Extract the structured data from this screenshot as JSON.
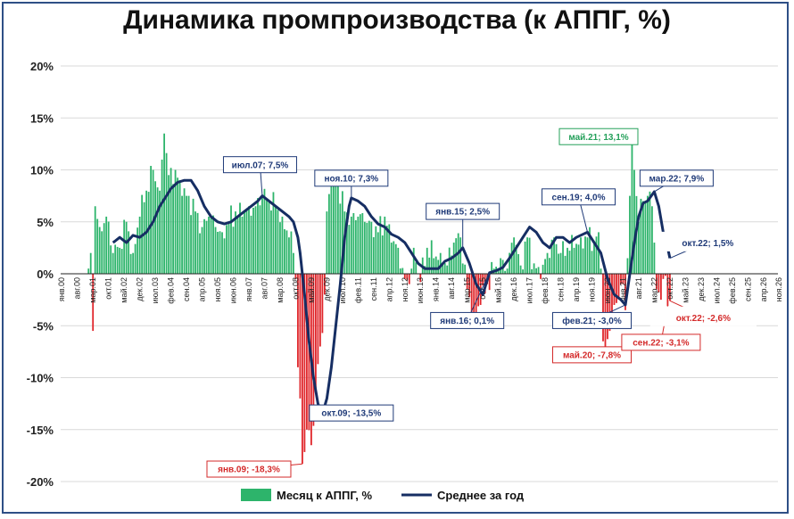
{
  "colors": {
    "positive_bar": "#2db46b",
    "negative_bar": "#e0262b",
    "avg_line": "#162e63",
    "grid": "#d9d9d9",
    "pos_annotation": "#24a05a",
    "neg_annotation": "#d42a2a",
    "avg_annotation": "#1f3a78"
  },
  "chart_data": {
    "type": "bar",
    "title": "Динамика промпроизводства (к АППГ, %)",
    "ylim": [
      -20,
      20
    ],
    "y_ticks": [
      "20%",
      "15%",
      "10%",
      "5%",
      "0%",
      "-5%",
      "-10%",
      "-15%",
      "-20%"
    ],
    "grid": true,
    "x_range": [
      "янв.00",
      "ноя.26"
    ],
    "x_tick_labels": [
      "янв.00",
      "авг.00",
      "мар.01",
      "окт.01",
      "май.02",
      "дек.02",
      "июл.03",
      "фев.04",
      "сен.04",
      "апр.05",
      "ноя.05",
      "июн.06",
      "янв.07",
      "авг.07",
      "мар.08",
      "окт.08",
      "май.09",
      "дек.09",
      "июл.10",
      "фев.11",
      "сен.11",
      "апр.12",
      "ноя.12",
      "июн.13",
      "янв.14",
      "авг.14",
      "мар.15",
      "окт.15",
      "май.16",
      "дек.16",
      "июл.17",
      "фев.18",
      "сен.18",
      "апр.19",
      "ноя.19",
      "июн.20",
      "янв.21",
      "авг.21",
      "мар.22",
      "окт.22",
      "май.23",
      "дек.23",
      "июл.24",
      "фев.25",
      "сен.25",
      "апр.26",
      "ноя.26"
    ],
    "series": [
      {
        "name": "Месяц к АППГ, %",
        "kind": "bar",
        "anchors": [
          [
            "2001-01",
            0.5
          ],
          [
            "2001-02",
            2.0
          ],
          [
            "2001-03",
            -5.5
          ],
          [
            "2001-04",
            6.5
          ],
          [
            "2001-06",
            4.5
          ],
          [
            "2001-09",
            5.5
          ],
          [
            "2001-12",
            2.0
          ],
          [
            "2002-03",
            2.5
          ],
          [
            "2002-06",
            5.0
          ],
          [
            "2002-09",
            2.0
          ],
          [
            "2002-12",
            5.5
          ],
          [
            "2003-03",
            8.0
          ],
          [
            "2003-06",
            10.0
          ],
          [
            "2003-09",
            8.0
          ],
          [
            "2003-11",
            13.5
          ],
          [
            "2004-01",
            9.5
          ],
          [
            "2004-04",
            10.0
          ],
          [
            "2004-07",
            7.5
          ],
          [
            "2004-10",
            7.5
          ],
          [
            "2005-01",
            6.0
          ],
          [
            "2005-04",
            4.5
          ],
          [
            "2005-07",
            5.5
          ],
          [
            "2005-10",
            4.5
          ],
          [
            "2006-01",
            4.0
          ],
          [
            "2006-04",
            5.0
          ],
          [
            "2006-07",
            6.0
          ],
          [
            "2006-10",
            5.5
          ],
          [
            "2007-01",
            6.5
          ],
          [
            "2007-04",
            6.5
          ],
          [
            "2007-07",
            7.5
          ],
          [
            "2007-10",
            7.0
          ],
          [
            "2008-01",
            6.5
          ],
          [
            "2008-04",
            5.5
          ],
          [
            "2008-07",
            3.5
          ],
          [
            "2008-09",
            2.0
          ],
          [
            "2008-10",
            -0.5
          ],
          [
            "2008-11",
            -9.0
          ],
          [
            "2008-12",
            -12.0
          ],
          [
            "2009-01",
            -18.3
          ],
          [
            "2009-03",
            -15.0
          ],
          [
            "2009-05",
            -16.5
          ],
          [
            "2009-07",
            -11.0
          ],
          [
            "2009-09",
            -7.0
          ],
          [
            "2009-11",
            -2.0
          ],
          [
            "2009-12",
            6.0
          ],
          [
            "2010-02",
            8.5
          ],
          [
            "2010-05",
            9.0
          ],
          [
            "2010-08",
            6.0
          ],
          [
            "2010-11",
            5.5
          ],
          [
            "2011-02",
            5.5
          ],
          [
            "2011-05",
            5.0
          ],
          [
            "2011-08",
            5.0
          ],
          [
            "2011-11",
            4.0
          ],
          [
            "2012-02",
            5.5
          ],
          [
            "2012-05",
            3.0
          ],
          [
            "2012-08",
            2.5
          ],
          [
            "2012-11",
            -0.5
          ],
          [
            "2013-01",
            -1.0
          ],
          [
            "2013-03",
            2.5
          ],
          [
            "2013-06",
            -0.8
          ],
          [
            "2013-09",
            2.5
          ],
          [
            "2013-12",
            1.5
          ],
          [
            "2014-03",
            2.0
          ],
          [
            "2014-06",
            0.8
          ],
          [
            "2014-09",
            3.0
          ],
          [
            "2014-12",
            3.5
          ],
          [
            "2015-03",
            -1.5
          ],
          [
            "2015-06",
            -4.0
          ],
          [
            "2015-09",
            -3.0
          ],
          [
            "2015-12",
            -1.0
          ],
          [
            "2016-03",
            0.5
          ],
          [
            "2016-06",
            1.5
          ],
          [
            "2016-09",
            0.5
          ],
          [
            "2016-12",
            3.5
          ],
          [
            "2017-03",
            0.8
          ],
          [
            "2017-06",
            3.5
          ],
          [
            "2017-09",
            1.0
          ],
          [
            "2017-12",
            -0.5
          ],
          [
            "2018-03",
            2.0
          ],
          [
            "2018-06",
            3.5
          ],
          [
            "2018-09",
            2.0
          ],
          [
            "2018-12",
            2.5
          ],
          [
            "2019-03",
            2.5
          ],
          [
            "2019-06",
            3.5
          ],
          [
            "2019-09",
            3.5
          ],
          [
            "2019-12",
            3.0
          ],
          [
            "2020-02",
            4.0
          ],
          [
            "2020-03",
            0.5
          ],
          [
            "2020-04",
            -6.5
          ],
          [
            "2020-05",
            -7.8
          ],
          [
            "2020-07",
            -5.5
          ],
          [
            "2020-09",
            -3.0
          ],
          [
            "2020-11",
            -2.5
          ],
          [
            "2020-12",
            -1.0
          ],
          [
            "2021-02",
            -3.5
          ],
          [
            "2021-03",
            1.5
          ],
          [
            "2021-04",
            7.5
          ],
          [
            "2021-05",
            13.1
          ],
          [
            "2021-06",
            10.0
          ],
          [
            "2021-08",
            5.0
          ],
          [
            "2021-10",
            7.0
          ],
          [
            "2021-12",
            7.5
          ],
          [
            "2022-02",
            6.5
          ],
          [
            "2022-03",
            3.0
          ],
          [
            "2022-04",
            -1.5
          ],
          [
            "2022-05",
            -1.8
          ],
          [
            "2022-06",
            -2.5
          ],
          [
            "2022-07",
            -0.5
          ],
          [
            "2022-08",
            -0.2
          ],
          [
            "2022-09",
            -3.1
          ],
          [
            "2022-10",
            -2.6
          ]
        ]
      },
      {
        "name": "Среднее за год",
        "kind": "line",
        "points": [
          [
            "2001-12",
            3.0
          ],
          [
            "2002-03",
            3.5
          ],
          [
            "2002-06",
            3.0
          ],
          [
            "2002-09",
            3.7
          ],
          [
            "2002-12",
            3.5
          ],
          [
            "2003-03",
            4.0
          ],
          [
            "2003-06",
            5.0
          ],
          [
            "2003-09",
            6.5
          ],
          [
            "2003-12",
            7.5
          ],
          [
            "2004-02",
            8.2
          ],
          [
            "2004-05",
            8.8
          ],
          [
            "2004-08",
            9.0
          ],
          [
            "2004-11",
            9.0
          ],
          [
            "2005-02",
            8.0
          ],
          [
            "2005-05",
            6.5
          ],
          [
            "2005-08",
            5.5
          ],
          [
            "2005-11",
            5.0
          ],
          [
            "2006-02",
            4.8
          ],
          [
            "2006-05",
            5.0
          ],
          [
            "2006-08",
            5.5
          ],
          [
            "2006-11",
            6.0
          ],
          [
            "2007-02",
            6.5
          ],
          [
            "2007-05",
            7.0
          ],
          [
            "2007-07",
            7.5
          ],
          [
            "2007-10",
            7.0
          ],
          [
            "2008-01",
            6.5
          ],
          [
            "2008-04",
            6.0
          ],
          [
            "2008-07",
            5.5
          ],
          [
            "2008-09",
            5.0
          ],
          [
            "2008-11",
            3.5
          ],
          [
            "2008-12",
            2.0
          ],
          [
            "2009-02",
            -2.0
          ],
          [
            "2009-04",
            -6.5
          ],
          [
            "2009-06",
            -10.0
          ],
          [
            "2009-08",
            -12.5
          ],
          [
            "2009-10",
            -13.5
          ],
          [
            "2009-12",
            -12.0
          ],
          [
            "2010-02",
            -9.0
          ],
          [
            "2010-04",
            -5.0
          ],
          [
            "2010-06",
            -1.0
          ],
          [
            "2010-08",
            3.5
          ],
          [
            "2010-10",
            6.5
          ],
          [
            "2010-11",
            7.3
          ],
          [
            "2011-02",
            7.0
          ],
          [
            "2011-05",
            6.5
          ],
          [
            "2011-08",
            5.5
          ],
          [
            "2011-11",
            4.8
          ],
          [
            "2012-02",
            4.5
          ],
          [
            "2012-05",
            3.8
          ],
          [
            "2012-08",
            3.5
          ],
          [
            "2012-11",
            3.0
          ],
          [
            "2013-02",
            2.0
          ],
          [
            "2013-05",
            1.0
          ],
          [
            "2013-08",
            0.5
          ],
          [
            "2013-11",
            0.5
          ],
          [
            "2014-02",
            0.5
          ],
          [
            "2014-05",
            1.2
          ],
          [
            "2014-08",
            1.5
          ],
          [
            "2014-11",
            2.0
          ],
          [
            "2015-01",
            2.5
          ],
          [
            "2015-04",
            1.0
          ],
          [
            "2015-07",
            -1.0
          ],
          [
            "2015-10",
            -2.0
          ],
          [
            "2016-01",
            0.1
          ],
          [
            "2016-04",
            0.3
          ],
          [
            "2016-07",
            0.6
          ],
          [
            "2016-10",
            1.5
          ],
          [
            "2017-01",
            2.5
          ],
          [
            "2017-04",
            3.5
          ],
          [
            "2017-07",
            4.5
          ],
          [
            "2017-10",
            4.0
          ],
          [
            "2018-01",
            3.0
          ],
          [
            "2018-04",
            2.5
          ],
          [
            "2018-07",
            3.5
          ],
          [
            "2018-10",
            3.5
          ],
          [
            "2019-01",
            3.0
          ],
          [
            "2019-04",
            3.5
          ],
          [
            "2019-07",
            3.8
          ],
          [
            "2019-09",
            4.0
          ],
          [
            "2019-12",
            3.0
          ],
          [
            "2020-03",
            2.0
          ],
          [
            "2020-06",
            -0.5
          ],
          [
            "2020-09",
            -2.0
          ],
          [
            "2020-12",
            -2.5
          ],
          [
            "2021-02",
            -3.0
          ],
          [
            "2021-04",
            0.0
          ],
          [
            "2021-06",
            3.0
          ],
          [
            "2021-08",
            5.5
          ],
          [
            "2021-10",
            6.8
          ],
          [
            "2021-12",
            7.0
          ],
          [
            "2022-03",
            7.9
          ],
          [
            "2022-05",
            6.5
          ],
          [
            "2022-07",
            4.0
          ],
          [
            "2022-09",
            2.5
          ],
          [
            "2022-10",
            1.5
          ]
        ]
      }
    ],
    "annotations": [
      {
        "text": "июл.07; 7,5%",
        "kind": "avg",
        "at": [
          "2007-07",
          7.5
        ],
        "label_at": [
          "2007-06",
          10.5
        ]
      },
      {
        "text": "ноя.10; 7,3%",
        "kind": "avg",
        "at": [
          "2010-11",
          7.3
        ],
        "label_at": [
          "2010-11",
          9.2
        ]
      },
      {
        "text": "янв.15; 2,5%",
        "kind": "avg",
        "at": [
          "2015-01",
          2.5
        ],
        "label_at": [
          "2015-01",
          6.0
        ]
      },
      {
        "text": "сен.19; 4,0%",
        "kind": "avg",
        "at": [
          "2019-09",
          4.0
        ],
        "label_at": [
          "2019-05",
          7.4
        ]
      },
      {
        "text": "мар.22; 7,9%",
        "kind": "avg",
        "at": [
          "2022-03",
          7.9
        ],
        "label_at": [
          "2023-01",
          9.2
        ]
      },
      {
        "text": "окт.22; 1,5%",
        "kind": "avg-big",
        "at": [
          "2022-10",
          1.5
        ],
        "label_at": [
          "2024-03",
          3.1
        ]
      },
      {
        "text": "янв.16; 0,1%",
        "kind": "avg",
        "at": [
          "2016-01",
          0.1
        ],
        "label_at": [
          "2015-03",
          -4.5
        ]
      },
      {
        "text": "фев.21; -3,0%",
        "kind": "avg",
        "at": [
          "2021-02",
          -3.0
        ],
        "label_at": [
          "2019-11",
          -4.5
        ]
      },
      {
        "text": "окт.09; -13,5%",
        "kind": "avg",
        "at": [
          "2009-10",
          -13.5
        ],
        "label_at": [
          "2010-11",
          -13.4
        ]
      },
      {
        "text": "май.21; 13,1%",
        "kind": "pos",
        "at": [
          "2021-05",
          13.1
        ],
        "label_at": [
          "2020-02",
          13.2
        ]
      },
      {
        "text": "май.20; -7,8%",
        "kind": "neg",
        "at": [
          "2020-05",
          -7.8
        ],
        "label_at": [
          "2019-11",
          -7.8
        ]
      },
      {
        "text": "сен.22; -3,1%",
        "kind": "neg",
        "at": [
          "2022-09",
          -3.1
        ],
        "label_at": [
          "2022-06",
          -6.6
        ]
      },
      {
        "text": "янв.09; -18,3%",
        "kind": "neg",
        "at": [
          "2009-01",
          -18.3
        ],
        "label_at": [
          "2007-01",
          -18.8
        ]
      },
      {
        "text": "окт.22; -2,6%",
        "kind": "neg-big",
        "at": [
          "2022-10",
          -2.6
        ],
        "label_at": [
          "2024-01",
          -4.1
        ]
      }
    ],
    "legend": {
      "position": "bottom-center",
      "items": [
        {
          "label": "Месяц к АППГ, %",
          "kind": "bar"
        },
        {
          "label": "Среднее за год",
          "kind": "line"
        }
      ]
    }
  }
}
